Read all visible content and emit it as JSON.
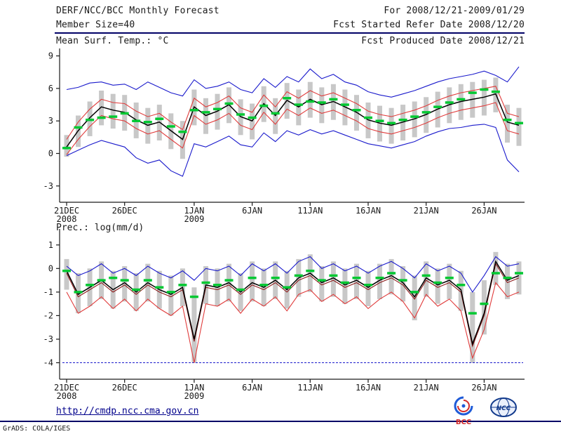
{
  "header": {
    "title": "DERF/NCC/BCC Monthly Forecast",
    "member_size": "Member Size=40",
    "top_var_label": "Mean Surf. Temp.: °C",
    "for_range": "For 2008/12/21-2009/01/29",
    "fcst_started": "Fcst Started Refer Date 2008/12/20",
    "fcst_produced": "Fcst Produced Date 2008/12/21"
  },
  "section_labels": {
    "precip": "Prec.: log(mm/d)"
  },
  "footer": {
    "url": "http://cmdp.ncc.cma.gov.cn",
    "credit": "GrADS: COLA/IGES",
    "logos": [
      {
        "label": "BCC"
      },
      {
        "label": "NCC"
      }
    ]
  },
  "colors": {
    "axis": "#1a1a1a",
    "divider": "#000066",
    "bar": "#c8c8c8",
    "envelope_blue": "#1a1acc",
    "band_red": "#e03c3c",
    "mean_black": "#000000",
    "median_maroon": "#8b1a1a",
    "obs_green": "#00c832",
    "link": "#00008b"
  },
  "chart_data": [
    {
      "name": "surface-temperature",
      "type": "line",
      "title": "Mean Surf. Temp.: °C",
      "ylim": [
        -4.5,
        9.3
      ],
      "yticks": [
        -3,
        0,
        3,
        6,
        9
      ],
      "xticks": [
        {
          "i": 0,
          "label": "21DEC",
          "sub": "2008"
        },
        {
          "i": 5,
          "label": "26DEC"
        },
        {
          "i": 11,
          "label": "1JAN",
          "sub": "2009"
        },
        {
          "i": 16,
          "label": "6JAN"
        },
        {
          "i": 21,
          "label": "11JAN"
        },
        {
          "i": 26,
          "label": "16JAN"
        },
        {
          "i": 31,
          "label": "21JAN"
        },
        {
          "i": 36,
          "label": "26JAN"
        }
      ],
      "series": [
        {
          "name": "ensemble-spread",
          "kind": "bar",
          "color": "#c8c8c8",
          "low": [
            -0.3,
            0.6,
            1.6,
            2.6,
            2.3,
            2.1,
            1.4,
            0.9,
            1.2,
            0.4,
            -0.5,
            2.6,
            1.8,
            2.2,
            2.8,
            1.7,
            1.3,
            2.9,
            1.8,
            3.2,
            2.6,
            3.3,
            2.8,
            3.1,
            2.6,
            2.1,
            1.4,
            1.1,
            0.9,
            1.2,
            1.5,
            1.9,
            2.4,
            2.8,
            3.1,
            3.3,
            3.5,
            3.8,
            1.0,
            0.7
          ],
          "high": [
            1.7,
            3.5,
            4.8,
            5.8,
            5.5,
            5.4,
            4.7,
            4.2,
            4.5,
            3.7,
            3.0,
            5.9,
            5.1,
            5.5,
            6.1,
            5.0,
            4.6,
            6.2,
            5.1,
            6.5,
            5.9,
            6.6,
            6.1,
            6.4,
            5.9,
            5.4,
            4.7,
            4.4,
            4.2,
            4.5,
            4.8,
            5.2,
            5.7,
            6.1,
            6.4,
            6.6,
            6.8,
            7.0,
            4.5,
            4.2
          ]
        },
        {
          "name": "ensemble-max",
          "kind": "line",
          "color": "#1a1acc",
          "values": [
            5.9,
            6.1,
            6.5,
            6.6,
            6.3,
            6.4,
            5.9,
            6.6,
            6.1,
            5.6,
            5.3,
            6.8,
            6.0,
            6.2,
            6.6,
            5.9,
            5.6,
            6.9,
            6.1,
            7.1,
            6.6,
            7.8,
            6.9,
            7.3,
            6.6,
            6.3,
            5.7,
            5.4,
            5.2,
            5.5,
            5.8,
            6.2,
            6.6,
            6.9,
            7.1,
            7.3,
            7.6,
            7.2,
            6.6,
            8.0
          ]
        },
        {
          "name": "ensemble-min",
          "kind": "line",
          "color": "#1a1acc",
          "values": [
            -0.2,
            0.3,
            0.8,
            1.2,
            0.9,
            0.6,
            -0.4,
            -0.9,
            -0.6,
            -1.6,
            -2.1,
            0.9,
            0.6,
            1.1,
            1.6,
            0.8,
            0.6,
            1.9,
            1.1,
            2.1,
            1.7,
            2.2,
            1.8,
            2.1,
            1.7,
            1.3,
            0.9,
            0.7,
            0.5,
            0.8,
            1.1,
            1.6,
            2.0,
            2.3,
            2.4,
            2.6,
            2.7,
            2.4,
            -0.6,
            -1.7
          ]
        },
        {
          "name": "upper-band",
          "kind": "line",
          "color": "#e03c3c",
          "values": [
            1.3,
            2.9,
            4.1,
            5.0,
            4.7,
            4.6,
            3.9,
            3.4,
            3.7,
            2.9,
            2.2,
            5.1,
            4.3,
            4.7,
            5.3,
            4.2,
            3.8,
            5.4,
            4.3,
            5.7,
            5.1,
            5.8,
            5.3,
            5.6,
            5.1,
            4.6,
            3.9,
            3.6,
            3.4,
            3.7,
            4.0,
            4.4,
            4.9,
            5.3,
            5.6,
            5.8,
            6.0,
            6.2,
            3.7,
            3.4
          ]
        },
        {
          "name": "lower-band",
          "kind": "line",
          "color": "#e03c3c",
          "values": [
            -0.1,
            1.3,
            2.5,
            3.5,
            3.2,
            3.0,
            2.3,
            1.8,
            2.1,
            1.3,
            0.5,
            3.5,
            2.7,
            3.1,
            3.7,
            2.6,
            2.2,
            3.8,
            2.7,
            4.1,
            3.5,
            4.2,
            3.7,
            4.0,
            3.5,
            3.0,
            2.3,
            2.0,
            1.8,
            2.1,
            2.4,
            2.8,
            3.3,
            3.7,
            4.0,
            4.2,
            4.4,
            4.7,
            2.1,
            1.8
          ]
        },
        {
          "name": "ensemble-mean",
          "kind": "line",
          "color": "#000000",
          "width": 1.5,
          "values": [
            0.6,
            2.1,
            3.3,
            4.3,
            4.0,
            3.8,
            3.1,
            2.6,
            2.9,
            2.1,
            1.3,
            4.3,
            3.5,
            3.9,
            4.5,
            3.4,
            3.0,
            4.6,
            3.5,
            4.9,
            4.3,
            5.0,
            4.5,
            4.8,
            4.3,
            3.8,
            3.1,
            2.8,
            2.6,
            2.9,
            3.2,
            3.6,
            4.1,
            4.5,
            4.8,
            5.0,
            5.2,
            5.5,
            2.9,
            2.6
          ]
        },
        {
          "name": "climatology",
          "kind": "dash",
          "color": "#00c832",
          "values": [
            0.5,
            2.4,
            3.1,
            3.3,
            3.4,
            3.7,
            3.0,
            2.9,
            3.2,
            2.5,
            2.0,
            4.0,
            3.8,
            4.1,
            4.6,
            3.6,
            3.3,
            4.4,
            3.7,
            5.1,
            4.5,
            4.8,
            4.7,
            5.0,
            4.5,
            4.0,
            3.3,
            3.0,
            2.8,
            3.1,
            3.4,
            3.8,
            4.3,
            4.7,
            5.0,
            5.6,
            5.9,
            5.7,
            3.1,
            2.8
          ]
        }
      ]
    },
    {
      "name": "precipitation",
      "type": "line",
      "title": "Prec.: log(mm/d)",
      "ylim": [
        -4.7,
        1.5
      ],
      "yticks": [
        -4,
        -3,
        -2,
        -1,
        0,
        1
      ],
      "baseline": {
        "value": -4,
        "color": "#1a1acc"
      },
      "xticks": [
        {
          "i": 0,
          "label": "21DEC",
          "sub": "2008"
        },
        {
          "i": 5,
          "label": "26DEC"
        },
        {
          "i": 11,
          "label": "1JAN",
          "sub": "2009"
        },
        {
          "i": 16,
          "label": "6JAN"
        },
        {
          "i": 21,
          "label": "11JAN"
        },
        {
          "i": 26,
          "label": "16JAN"
        },
        {
          "i": 31,
          "label": "21JAN"
        },
        {
          "i": 36,
          "label": "26JAN"
        }
      ],
      "series": [
        {
          "name": "ensemble-spread",
          "kind": "bar",
          "color": "#c8c8c8",
          "low": [
            -0.9,
            -1.9,
            -1.6,
            -1.3,
            -1.7,
            -1.4,
            -1.8,
            -1.4,
            -1.7,
            -2.0,
            -1.6,
            -4.0,
            -1.5,
            -1.6,
            -1.4,
            -1.8,
            -1.4,
            -1.6,
            -1.3,
            -1.7,
            -1.2,
            -1.0,
            -1.4,
            -1.2,
            -1.5,
            -1.3,
            -1.6,
            -1.3,
            -1.1,
            -1.4,
            -2.2,
            -1.2,
            -1.5,
            -1.3,
            -1.8,
            -4.0,
            -2.8,
            -0.7,
            -1.3,
            -1.1
          ],
          "high": [
            0.4,
            -0.2,
            0,
            0.3,
            -0.1,
            0.1,
            -0.2,
            0.2,
            -0.1,
            -0.3,
            0,
            -0.8,
            0.1,
            0,
            0.2,
            -0.2,
            0.3,
            0,
            0.3,
            -0.1,
            0.4,
            0.6,
            0.1,
            0.3,
            0,
            0.2,
            -0.1,
            0.2,
            0.4,
            0.1,
            -0.3,
            0.3,
            0,
            0.2,
            -0.1,
            -1.0,
            -0.5,
            0.7,
            0.2,
            0.3
          ]
        },
        {
          "name": "ensemble-max",
          "kind": "line",
          "color": "#1a1acc",
          "values": [
            0.1,
            -0.3,
            -0.1,
            0.2,
            -0.2,
            0,
            -0.3,
            0.1,
            -0.2,
            -0.4,
            -0.1,
            -0.5,
            0,
            -0.1,
            0.1,
            -0.3,
            0.2,
            -0.1,
            0.2,
            -0.2,
            0.3,
            0.5,
            0,
            0.2,
            -0.1,
            0.1,
            -0.2,
            0.1,
            0.3,
            0,
            -0.4,
            0.2,
            -0.1,
            0.1,
            -0.2,
            -1.0,
            -0.3,
            0.5,
            0.1,
            0.2
          ]
        },
        {
          "name": "lower-band",
          "kind": "line",
          "color": "#e03c3c",
          "values": [
            -1.0,
            -1.9,
            -1.6,
            -1.2,
            -1.7,
            -1.3,
            -1.8,
            -1.3,
            -1.7,
            -2.0,
            -1.6,
            -4.0,
            -1.5,
            -1.6,
            -1.3,
            -1.9,
            -1.3,
            -1.6,
            -1.2,
            -1.8,
            -1.1,
            -0.9,
            -1.4,
            -1.1,
            -1.5,
            -1.2,
            -1.7,
            -1.3,
            -1.0,
            -1.4,
            -2.1,
            -1.1,
            -1.6,
            -1.3,
            -1.8,
            -3.8,
            -2.6,
            -0.6,
            -1.2,
            -1.0
          ]
        },
        {
          "name": "median",
          "kind": "line",
          "color": "#8b1a1a",
          "values": [
            -0.2,
            -1.2,
            -0.9,
            -0.6,
            -1.0,
            -0.7,
            -1.1,
            -0.7,
            -1.0,
            -1.2,
            -0.9,
            -3.1,
            -0.8,
            -0.9,
            -0.7,
            -1.1,
            -0.7,
            -0.9,
            -0.6,
            -1.0,
            -0.5,
            -0.3,
            -0.7,
            -0.5,
            -0.8,
            -0.6,
            -0.9,
            -0.6,
            -0.4,
            -0.7,
            -1.3,
            -0.5,
            -0.8,
            -0.6,
            -1.0,
            -3.3,
            -2.0,
            0.2,
            -0.6,
            -0.4
          ]
        },
        {
          "name": "ensemble-mean",
          "kind": "line",
          "color": "#000000",
          "width": 1.5,
          "values": [
            -0.1,
            -1.1,
            -0.8,
            -0.5,
            -0.9,
            -0.6,
            -1.0,
            -0.6,
            -0.9,
            -1.1,
            -0.8,
            -3.0,
            -0.7,
            -0.8,
            -0.6,
            -1.0,
            -0.6,
            -0.8,
            -0.5,
            -0.9,
            -0.4,
            -0.2,
            -0.6,
            -0.4,
            -0.7,
            -0.5,
            -0.8,
            -0.5,
            -0.3,
            -0.6,
            -1.2,
            -0.4,
            -0.7,
            -0.5,
            -0.9,
            -3.2,
            -1.9,
            0.3,
            -0.5,
            -0.3
          ]
        },
        {
          "name": "climatology",
          "kind": "dash",
          "color": "#00c832",
          "values": [
            -0.1,
            -1.0,
            -0.7,
            -0.5,
            -0.4,
            -0.5,
            -0.9,
            -0.5,
            -0.8,
            -1.0,
            -0.7,
            -1.2,
            -0.6,
            -0.7,
            -0.5,
            -0.9,
            -0.4,
            -0.7,
            -0.4,
            -0.8,
            -0.3,
            -0.1,
            -0.5,
            -0.3,
            -0.6,
            -0.4,
            -0.7,
            -0.4,
            -0.2,
            -0.5,
            -1.0,
            -0.3,
            -0.6,
            -0.4,
            -0.7,
            -1.9,
            -1.5,
            -0.2,
            -0.4,
            -0.2
          ]
        }
      ]
    }
  ]
}
